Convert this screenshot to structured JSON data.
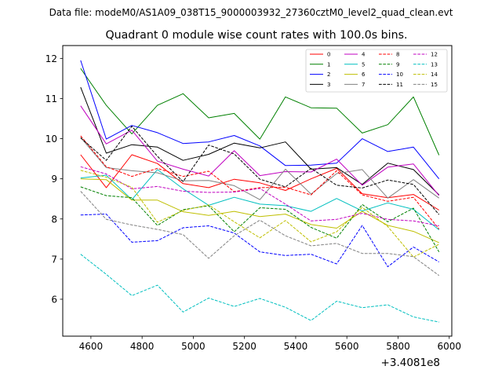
{
  "chart_data": {
    "type": "line",
    "suptitle": "Data file: modeM0/AS1A09_038T15_9000003932_27360cztM0_level2_quad_clean.evt",
    "title": "Quadrant 0 module wise count rates with 100.0s bins.",
    "xlabel": "",
    "ylabel": "",
    "x_offset_label": "+3.4081e8",
    "xlim": [
      4490,
      6010
    ],
    "ylim": [
      5.08,
      12.32
    ],
    "xticks": [
      4600,
      4800,
      5000,
      5200,
      5400,
      5600,
      5800,
      6000
    ],
    "yticks": [
      6,
      7,
      8,
      9,
      10,
      11,
      12
    ],
    "x": [
      4560,
      4660,
      4760,
      4860,
      4960,
      5060,
      5160,
      5260,
      5360,
      5460,
      5560,
      5660,
      5760,
      5860,
      5960
    ],
    "legend_location": "upper right",
    "legend_columns": 4,
    "series": [
      {
        "name": "0",
        "color": "#ff0000",
        "dash": "solid",
        "values": [
          9.6,
          8.78,
          9.6,
          9.38,
          8.88,
          8.78,
          8.99,
          8.9,
          8.71,
          9.0,
          9.26,
          8.63,
          8.53,
          8.61,
          8.22
        ]
      },
      {
        "name": "1",
        "color": "#008000",
        "dash": "solid",
        "values": [
          11.75,
          10.83,
          10.12,
          10.83,
          11.12,
          10.52,
          10.63,
          9.99,
          11.04,
          10.77,
          10.76,
          10.14,
          10.35,
          11.04,
          9.59
        ]
      },
      {
        "name": "2",
        "color": "#0000ff",
        "dash": "solid",
        "values": [
          11.95,
          9.99,
          10.33,
          10.15,
          9.88,
          9.92,
          10.08,
          9.82,
          9.33,
          9.34,
          9.39,
          10.0,
          9.68,
          9.79,
          9.0
        ]
      },
      {
        "name": "3",
        "color": "#000000",
        "dash": "solid",
        "values": [
          11.28,
          9.64,
          9.85,
          9.79,
          9.46,
          9.61,
          9.89,
          9.77,
          9.92,
          9.24,
          9.28,
          8.86,
          9.39,
          9.23,
          8.6
        ]
      },
      {
        "name": "4",
        "color": "#c000c0",
        "dash": "solid",
        "values": [
          10.82,
          9.87,
          10.21,
          9.44,
          9.24,
          9.07,
          9.7,
          9.08,
          9.18,
          9.17,
          9.49,
          8.84,
          9.29,
          9.37,
          8.58
        ]
      },
      {
        "name": "5",
        "color": "#00bfbf",
        "dash": "solid",
        "values": [
          9.02,
          9.09,
          8.48,
          9.23,
          8.75,
          8.34,
          8.54,
          8.37,
          8.33,
          8.19,
          8.51,
          8.2,
          8.4,
          8.24,
          7.73
        ]
      },
      {
        "name": "6",
        "color": "#bfbf00",
        "dash": "solid",
        "values": [
          9.0,
          8.98,
          8.47,
          8.47,
          8.18,
          8.09,
          8.19,
          8.06,
          8.12,
          7.86,
          7.77,
          8.19,
          7.84,
          7.69,
          7.41
        ]
      },
      {
        "name": "7",
        "color": "#808080",
        "dash": "solid",
        "values": [
          10.03,
          9.28,
          9.2,
          9.15,
          8.95,
          8.96,
          8.83,
          8.48,
          9.24,
          8.62,
          9.13,
          9.23,
          8.52,
          8.98,
          8.52
        ]
      },
      {
        "name": "8",
        "color": "#ff0000",
        "dash": "dashed",
        "values": [
          10.07,
          9.3,
          9.06,
          9.26,
          9.06,
          9.19,
          8.68,
          8.78,
          8.79,
          8.6,
          9.2,
          8.6,
          8.44,
          8.54,
          7.75
        ]
      },
      {
        "name": "9",
        "color": "#008000",
        "dash": "dashed",
        "values": [
          8.8,
          8.58,
          8.53,
          7.84,
          8.23,
          8.33,
          7.68,
          8.28,
          8.24,
          7.79,
          7.52,
          8.36,
          7.93,
          8.27,
          7.18
        ]
      },
      {
        "name": "10",
        "color": "#0000ff",
        "dash": "dashed",
        "values": [
          8.1,
          8.12,
          7.42,
          7.46,
          7.78,
          7.83,
          7.65,
          7.18,
          7.09,
          7.12,
          6.88,
          7.84,
          6.81,
          7.3,
          6.93
        ]
      },
      {
        "name": "11",
        "color": "#000000",
        "dash": "dashed",
        "values": [
          10.02,
          9.46,
          10.31,
          9.56,
          8.93,
          9.84,
          9.62,
          8.99,
          8.8,
          9.26,
          8.84,
          8.77,
          8.97,
          8.86,
          8.11
        ]
      },
      {
        "name": "12",
        "color": "#c000c0",
        "dash": "dashed",
        "values": [
          9.3,
          9.12,
          8.75,
          8.81,
          8.69,
          8.66,
          8.67,
          8.76,
          8.37,
          7.95,
          7.99,
          8.14,
          7.99,
          7.95,
          7.83
        ]
      },
      {
        "name": "13",
        "color": "#00bfbf",
        "dash": "dashed",
        "values": [
          7.12,
          6.62,
          6.09,
          6.35,
          5.68,
          6.03,
          5.82,
          6.02,
          5.8,
          5.47,
          5.95,
          5.79,
          5.86,
          5.56,
          5.43
        ]
      },
      {
        "name": "14",
        "color": "#bfbf00",
        "dash": "dashed",
        "values": [
          9.21,
          9.04,
          8.79,
          7.92,
          8.21,
          8.35,
          7.93,
          7.53,
          7.96,
          7.43,
          7.68,
          8.29,
          7.81,
          7.05,
          7.37
        ]
      },
      {
        "name": "15",
        "color": "#808080",
        "dash": "dashed",
        "values": [
          8.69,
          7.99,
          7.85,
          7.74,
          7.61,
          7.02,
          7.58,
          7.97,
          7.58,
          7.33,
          7.39,
          7.14,
          7.14,
          7.06,
          6.59
        ]
      }
    ]
  }
}
